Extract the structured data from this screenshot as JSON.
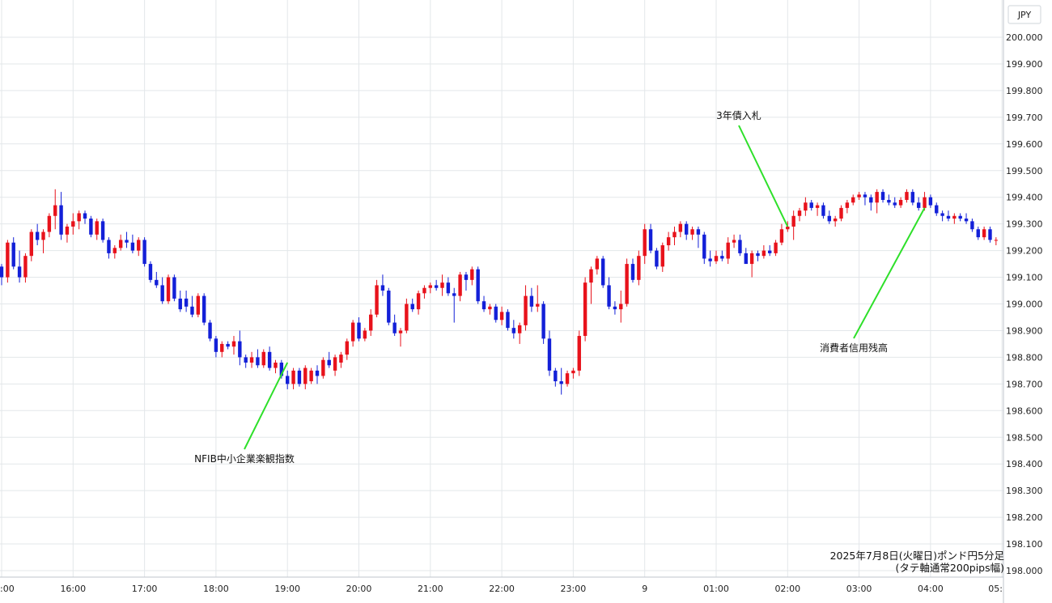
{
  "chart_data": {
    "type": "candlestick",
    "currency": "JPY",
    "caption_line1": "2025年7月8日(火曜日)ポンド円5分足",
    "caption_line2": "(タテ軸通常200pips幅)",
    "ylim": [
      198.0,
      200.05
    ],
    "y_ticks": [
      "200.000",
      "199.900",
      "199.800",
      "199.700",
      "199.600",
      "199.500",
      "199.400",
      "199.300",
      "199.200",
      "199.100",
      "199.000",
      "198.900",
      "198.800",
      "198.700",
      "198.600",
      "198.500",
      "198.400",
      "198.300",
      "198.200",
      "198.100",
      "198.000"
    ],
    "x_ticks": [
      ":00",
      "16:00",
      "17:00",
      "18:00",
      "19:00",
      "20:00",
      "21:00",
      "22:00",
      "23:00",
      "9",
      "01:00",
      "02:00",
      "03:00",
      "04:00",
      "05:"
    ],
    "start_time": "15:00",
    "interval_minutes": 5,
    "up_color": "#e8121b",
    "down_color": "#1320d8",
    "annotation_color": "#2ee02a",
    "annotations": [
      {
        "label": "NFIB中小企業楽観指数",
        "time": "19:00",
        "price": 198.78
      },
      {
        "label": "3年債入札",
        "time": "02:00",
        "price": 199.29
      },
      {
        "label": "消費者信用残高",
        "time": "03:55",
        "price": 199.36
      }
    ],
    "candles": [
      [
        199.14,
        199.15,
        199.07,
        199.1
      ],
      [
        199.1,
        199.24,
        199.08,
        199.23
      ],
      [
        199.23,
        199.25,
        199.13,
        199.14
      ],
      [
        199.14,
        199.2,
        199.08,
        199.1
      ],
      [
        199.1,
        199.19,
        199.08,
        199.18
      ],
      [
        199.18,
        199.28,
        199.16,
        199.27
      ],
      [
        199.27,
        199.3,
        199.22,
        199.24
      ],
      [
        199.24,
        199.28,
        199.19,
        199.27
      ],
      [
        199.27,
        199.34,
        199.25,
        199.33
      ],
      [
        199.33,
        199.43,
        199.28,
        199.37
      ],
      [
        199.37,
        199.42,
        199.24,
        199.26
      ],
      [
        199.26,
        199.3,
        199.23,
        199.29
      ],
      [
        199.29,
        199.34,
        199.26,
        199.31
      ],
      [
        199.31,
        199.35,
        199.28,
        199.34
      ],
      [
        199.34,
        199.35,
        199.3,
        199.32
      ],
      [
        199.32,
        199.33,
        199.25,
        199.26
      ],
      [
        199.26,
        199.32,
        199.24,
        199.31
      ],
      [
        199.31,
        199.32,
        199.23,
        199.24
      ],
      [
        199.24,
        199.25,
        199.17,
        199.19
      ],
      [
        199.19,
        199.22,
        199.17,
        199.21
      ],
      [
        199.21,
        199.26,
        199.2,
        199.24
      ],
      [
        199.24,
        199.27,
        199.21,
        199.23
      ],
      [
        199.23,
        199.26,
        199.19,
        199.2
      ],
      [
        199.2,
        199.25,
        199.18,
        199.24
      ],
      [
        199.24,
        199.25,
        199.14,
        199.15
      ],
      [
        199.15,
        199.16,
        199.08,
        199.09
      ],
      [
        199.09,
        199.12,
        199.06,
        199.07
      ],
      [
        199.07,
        199.1,
        199.0,
        199.01
      ],
      [
        199.01,
        199.11,
        199.0,
        199.1
      ],
      [
        199.1,
        199.11,
        199.01,
        199.02
      ],
      [
        199.02,
        199.05,
        198.97,
        198.98
      ],
      [
        199.02,
        199.05,
        198.97,
        198.99
      ],
      [
        198.99,
        199.03,
        198.95,
        198.96
      ],
      [
        198.96,
        199.04,
        198.95,
        199.03
      ],
      [
        199.03,
        199.04,
        198.92,
        198.93
      ],
      [
        198.93,
        198.94,
        198.86,
        198.87
      ],
      [
        198.87,
        198.88,
        198.8,
        198.82
      ],
      [
        198.82,
        198.86,
        198.8,
        198.85
      ],
      [
        198.85,
        198.86,
        198.83,
        198.84
      ],
      [
        198.84,
        198.88,
        198.81,
        198.86
      ],
      [
        198.86,
        198.9,
        198.77,
        198.8
      ],
      [
        198.8,
        198.81,
        198.76,
        198.78
      ],
      [
        198.78,
        198.82,
        198.76,
        198.8
      ],
      [
        198.8,
        198.83,
        198.76,
        198.77
      ],
      [
        198.77,
        198.83,
        198.76,
        198.82
      ],
      [
        198.82,
        198.84,
        198.75,
        198.76
      ],
      [
        198.76,
        198.79,
        198.74,
        198.78
      ],
      [
        198.78,
        198.79,
        198.72,
        198.73
      ],
      [
        198.73,
        198.75,
        198.68,
        198.7
      ],
      [
        198.7,
        198.76,
        198.68,
        198.75
      ],
      [
        198.75,
        198.76,
        198.69,
        198.7
      ],
      [
        198.7,
        198.77,
        198.68,
        198.76
      ],
      [
        198.71,
        198.76,
        198.7,
        198.75
      ],
      [
        198.75,
        198.77,
        198.7,
        198.73
      ],
      [
        198.73,
        198.8,
        198.72,
        198.79
      ],
      [
        198.79,
        198.82,
        198.76,
        198.77
      ],
      [
        198.75,
        198.81,
        198.73,
        198.8
      ],
      [
        198.78,
        198.82,
        198.76,
        198.81
      ],
      [
        198.81,
        198.87,
        198.79,
        198.86
      ],
      [
        198.86,
        198.94,
        198.84,
        198.93
      ],
      [
        198.93,
        198.95,
        198.86,
        198.87
      ],
      [
        198.87,
        198.91,
        198.86,
        198.9
      ],
      [
        198.9,
        198.98,
        198.88,
        198.96
      ],
      [
        198.96,
        199.09,
        198.95,
        199.07
      ],
      [
        199.07,
        199.11,
        199.03,
        199.05
      ],
      [
        199.05,
        199.06,
        198.92,
        198.93
      ],
      [
        198.93,
        198.96,
        198.88,
        198.89
      ],
      [
        198.89,
        198.91,
        198.84,
        198.9
      ],
      [
        198.9,
        199.02,
        198.89,
        199.0
      ],
      [
        199.0,
        199.02,
        198.97,
        198.98
      ],
      [
        198.98,
        199.05,
        198.96,
        199.04
      ],
      [
        199.04,
        199.07,
        199.02,
        199.06
      ],
      [
        199.06,
        199.08,
        199.04,
        199.07
      ],
      [
        199.07,
        199.09,
        199.05,
        199.06
      ],
      [
        199.06,
        199.11,
        199.03,
        199.08
      ],
      [
        199.08,
        199.1,
        199.03,
        199.04
      ],
      [
        199.04,
        199.06,
        198.93,
        199.03
      ],
      [
        199.03,
        199.12,
        199.01,
        199.11
      ],
      [
        199.11,
        199.12,
        199.05,
        199.09
      ],
      [
        199.09,
        199.14,
        199.07,
        199.13
      ],
      [
        199.13,
        199.14,
        199.0,
        199.01
      ],
      [
        199.01,
        199.03,
        198.97,
        198.98
      ],
      [
        198.98,
        199.0,
        198.96,
        198.99
      ],
      [
        198.99,
        199.0,
        198.93,
        198.94
      ],
      [
        198.94,
        198.99,
        198.92,
        198.97
      ],
      [
        198.97,
        198.98,
        198.9,
        198.91
      ],
      [
        198.91,
        198.94,
        198.87,
        198.89
      ],
      [
        198.89,
        198.93,
        198.85,
        198.92
      ],
      [
        198.92,
        199.07,
        198.9,
        199.03
      ],
      [
        199.03,
        199.06,
        198.97,
        198.99
      ],
      [
        198.99,
        199.07,
        198.97,
        199.0
      ],
      [
        199.0,
        199.01,
        198.85,
        198.87
      ],
      [
        198.87,
        198.9,
        198.73,
        198.75
      ],
      [
        198.75,
        198.76,
        198.69,
        198.71
      ],
      [
        198.71,
        198.76,
        198.66,
        198.7
      ],
      [
        198.7,
        198.75,
        198.69,
        198.74
      ],
      [
        198.74,
        198.76,
        198.72,
        198.75
      ],
      [
        198.75,
        198.9,
        198.73,
        198.88
      ],
      [
        198.88,
        199.1,
        198.86,
        199.08
      ],
      [
        199.08,
        199.14,
        199.0,
        199.13
      ],
      [
        199.13,
        199.18,
        199.11,
        199.17
      ],
      [
        199.17,
        199.18,
        199.06,
        199.07
      ],
      [
        199.07,
        199.1,
        198.98,
        198.99
      ],
      [
        198.99,
        199.01,
        198.96,
        198.98
      ],
      [
        198.98,
        199.05,
        198.93,
        199.0
      ],
      [
        199.0,
        199.17,
        198.99,
        199.15
      ],
      [
        199.15,
        199.17,
        199.08,
        199.09
      ],
      [
        199.09,
        199.2,
        199.07,
        199.18
      ],
      [
        199.18,
        199.3,
        199.15,
        199.28
      ],
      [
        199.28,
        199.3,
        199.19,
        199.2
      ],
      [
        199.2,
        199.21,
        199.13,
        199.14
      ],
      [
        199.14,
        199.23,
        199.12,
        199.22
      ],
      [
        199.22,
        199.27,
        199.2,
        199.25
      ],
      [
        199.25,
        199.29,
        199.22,
        199.27
      ],
      [
        199.27,
        199.31,
        199.25,
        199.3
      ],
      [
        199.3,
        199.31,
        199.24,
        199.26
      ],
      [
        199.26,
        199.29,
        199.24,
        199.28
      ],
      [
        199.28,
        199.29,
        199.21,
        199.26
      ],
      [
        199.26,
        199.27,
        199.15,
        199.17
      ],
      [
        199.17,
        199.2,
        199.14,
        199.16
      ],
      [
        199.16,
        199.2,
        199.15,
        199.18
      ],
      [
        199.18,
        199.2,
        199.16,
        199.17
      ],
      [
        199.17,
        199.25,
        199.15,
        199.23
      ],
      [
        199.23,
        199.26,
        199.21,
        199.24
      ],
      [
        199.24,
        199.26,
        199.18,
        199.19
      ],
      [
        199.19,
        199.21,
        199.16,
        199.15
      ],
      [
        199.15,
        199.2,
        199.1,
        199.19
      ],
      [
        199.19,
        199.2,
        199.16,
        199.18
      ],
      [
        199.18,
        199.22,
        199.17,
        199.2
      ],
      [
        199.2,
        199.22,
        199.18,
        199.19
      ],
      [
        199.19,
        199.24,
        199.18,
        199.23
      ],
      [
        199.23,
        199.3,
        199.22,
        199.28
      ],
      [
        199.28,
        199.31,
        199.27,
        199.29
      ],
      [
        199.29,
        199.35,
        199.24,
        199.33
      ],
      [
        199.33,
        199.36,
        199.31,
        199.35
      ],
      [
        199.35,
        199.4,
        199.33,
        199.38
      ],
      [
        199.38,
        199.39,
        199.35,
        199.36
      ],
      [
        199.36,
        199.38,
        199.33,
        199.37
      ],
      [
        199.37,
        199.38,
        199.32,
        199.33
      ],
      [
        199.33,
        199.35,
        199.3,
        199.31
      ],
      [
        199.31,
        199.33,
        199.29,
        199.32
      ],
      [
        199.32,
        199.37,
        199.31,
        199.36
      ],
      [
        199.36,
        199.39,
        199.34,
        199.38
      ],
      [
        199.38,
        199.41,
        199.37,
        199.4
      ],
      [
        199.4,
        199.42,
        199.39,
        199.41
      ],
      [
        199.41,
        199.42,
        199.37,
        199.4
      ],
      [
        199.4,
        199.41,
        199.35,
        199.38
      ],
      [
        199.38,
        199.43,
        199.34,
        199.42
      ],
      [
        199.42,
        199.43,
        199.38,
        199.39
      ],
      [
        199.39,
        199.41,
        199.37,
        199.38
      ],
      [
        199.38,
        199.4,
        199.36,
        199.37
      ],
      [
        199.37,
        199.4,
        199.36,
        199.39
      ],
      [
        199.39,
        199.43,
        199.38,
        199.42
      ],
      [
        199.42,
        199.43,
        199.37,
        199.38
      ],
      [
        199.38,
        199.4,
        199.35,
        199.36
      ],
      [
        199.36,
        199.42,
        199.35,
        199.4
      ],
      [
        199.4,
        199.41,
        199.36,
        199.37
      ],
      [
        199.37,
        199.38,
        199.33,
        199.34
      ],
      [
        199.34,
        199.35,
        199.31,
        199.33
      ],
      [
        199.33,
        199.35,
        199.31,
        199.32
      ],
      [
        199.32,
        199.34,
        199.3,
        199.33
      ],
      [
        199.33,
        199.34,
        199.31,
        199.32
      ],
      [
        199.32,
        199.34,
        199.3,
        199.31
      ],
      [
        199.31,
        199.32,
        199.27,
        199.28
      ],
      [
        199.28,
        199.29,
        199.24,
        199.25
      ],
      [
        199.25,
        199.29,
        199.24,
        199.28
      ],
      [
        199.28,
        199.29,
        199.23,
        199.24
      ],
      [
        199.24,
        199.25,
        199.22,
        199.24
      ]
    ]
  }
}
